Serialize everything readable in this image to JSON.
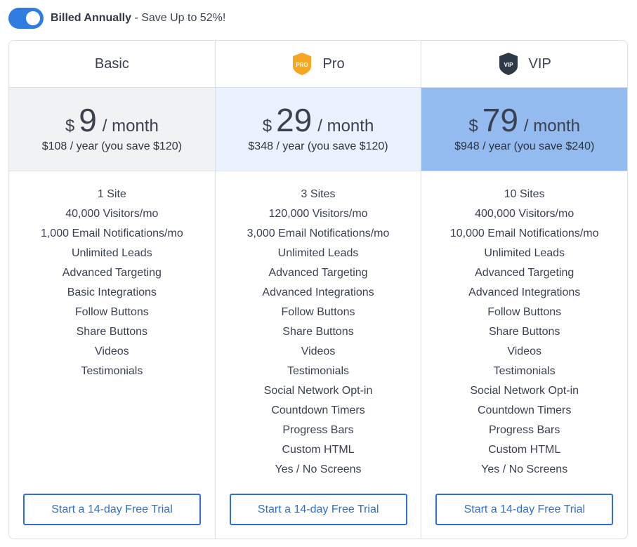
{
  "billing": {
    "toggle_on": true,
    "label_bold": "Billed Annually",
    "label_rest": " - Save Up to 52%!"
  },
  "plans": [
    {
      "name": "Basic",
      "badge": null,
      "currency": "$",
      "amount": "9",
      "per": "/ month",
      "yearly": "$108 / year (you save $120)",
      "features": [
        "1 Site",
        "40,000 Visitors/mo",
        "1,000 Email Notifications/mo",
        "Unlimited Leads",
        "Advanced Targeting",
        "Basic Integrations",
        "Follow Buttons",
        "Share Buttons",
        "Videos",
        "Testimonials"
      ],
      "cta": "Start a 14-day Free Trial"
    },
    {
      "name": "Pro",
      "badge": {
        "text": "PRO",
        "color": "#f5a623",
        "icon": "pro-shield-icon"
      },
      "currency": "$",
      "amount": "29",
      "per": "/ month",
      "yearly": "$348 / year (you save $120)",
      "features": [
        "3 Sites",
        "120,000 Visitors/mo",
        "3,000 Email Notifications/mo",
        "Unlimited Leads",
        "Advanced Targeting",
        "Advanced Integrations",
        "Follow Buttons",
        "Share Buttons",
        "Videos",
        "Testimonials",
        "Social Network Opt-in",
        "Countdown Timers",
        "Progress Bars",
        "Custom HTML",
        "Yes / No Screens"
      ],
      "cta": "Start a 14-day Free Trial"
    },
    {
      "name": "VIP",
      "badge": {
        "text": "VIP",
        "color": "#2f3847",
        "icon": "vip-shield-icon"
      },
      "currency": "$",
      "amount": "79",
      "per": "/ month",
      "yearly": "$948 / year (you save $240)",
      "features": [
        "10 Sites",
        "400,000 Visitors/mo",
        "10,000 Email Notifications/mo",
        "Unlimited Leads",
        "Advanced Targeting",
        "Advanced Integrations",
        "Follow Buttons",
        "Share Buttons",
        "Videos",
        "Testimonials",
        "Social Network Opt-in",
        "Countdown Timers",
        "Progress Bars",
        "Custom HTML",
        "Yes / No Screens"
      ],
      "cta": "Start a 14-day Free Trial"
    }
  ],
  "colors": {
    "accent": "#2f7de1",
    "button": "#2f6fd0",
    "basic_price_bg": "#f1f2f4",
    "pro_price_bg": "#eaf3fd",
    "vip_price_bg": "#93bbef"
  }
}
